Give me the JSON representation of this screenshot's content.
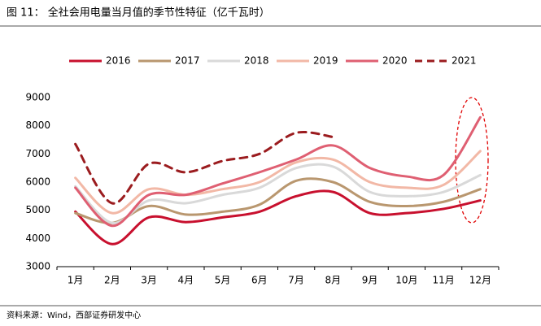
{
  "chart_data": {
    "type": "line",
    "title": "图 11：  全社会用电量当月值的季节性特征（亿千瓦时）",
    "source": "资料来源：Wind，西部证券研发中心",
    "categories": [
      "1月",
      "2月",
      "3月",
      "4月",
      "5月",
      "6月",
      "7月",
      "8月",
      "9月",
      "10月",
      "11月",
      "12月"
    ],
    "ylim": [
      3000,
      9000
    ],
    "yticks": [
      3000,
      4000,
      5000,
      6000,
      7000,
      8000,
      9000
    ],
    "legend": "top",
    "series": [
      {
        "name": "2016",
        "color": "#c8102e",
        "dash": false,
        "values": [
          4950,
          3800,
          4750,
          4580,
          4750,
          4950,
          5500,
          5650,
          4900,
          4900,
          5050,
          5350
        ]
      },
      {
        "name": "2017",
        "color": "#b9976f",
        "dash": false,
        "values": [
          4900,
          4550,
          5150,
          4850,
          4950,
          5200,
          6050,
          6000,
          5300,
          5150,
          5300,
          5750
        ]
      },
      {
        "name": "2018",
        "color": "#d9d9d9",
        "dash": false,
        "values": [
          5850,
          4550,
          5350,
          5250,
          5550,
          5800,
          6500,
          6550,
          5650,
          5500,
          5650,
          6250
        ]
      },
      {
        "name": "2019",
        "color": "#f2b8a6",
        "dash": false,
        "values": [
          6150,
          4900,
          5750,
          5550,
          5750,
          6000,
          6700,
          6800,
          6000,
          5800,
          5900,
          7100
        ]
      },
      {
        "name": "2020",
        "color": "#df5f72",
        "dash": false,
        "values": [
          5800,
          4450,
          5550,
          5550,
          5950,
          6350,
          6800,
          7300,
          6500,
          6200,
          6250,
          8300
        ]
      },
      {
        "name": "2021",
        "color": "#9b1c1f",
        "dash": true,
        "values": [
          7350,
          5250,
          6650,
          6350,
          6750,
          7000,
          7750,
          7600,
          null,
          null,
          null,
          null
        ]
      }
    ]
  }
}
